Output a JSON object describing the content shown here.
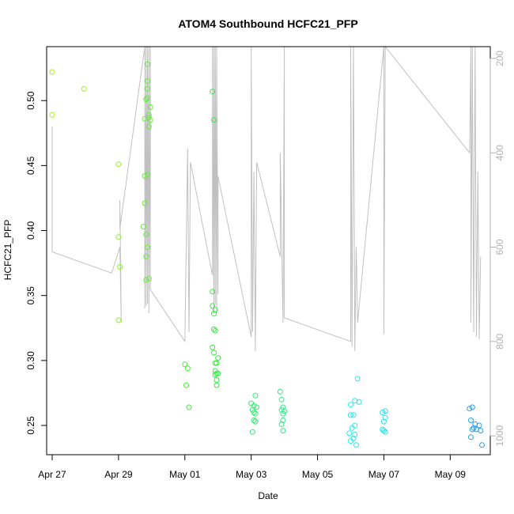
{
  "chart_data": {
    "type": "scatter",
    "title": "ATOM4 Southbound HCFC21_PFP",
    "xlabel": "Date",
    "ylabel": "HCFC21_PFP",
    "x_type": "date",
    "xlim": [
      "2017-04-26T20:00",
      "2017-05-10T05:00"
    ],
    "ylim": [
      0.2275,
      0.5415
    ],
    "x_ticks": [
      {
        "date": "2017-04-27",
        "label": "Apr 27"
      },
      {
        "date": "2017-04-29",
        "label": "Apr 29"
      },
      {
        "date": "2017-05-01",
        "label": "May 01"
      },
      {
        "date": "2017-05-03",
        "label": "May 03"
      },
      {
        "date": "2017-05-05",
        "label": "May 05"
      },
      {
        "date": "2017-05-07",
        "label": "May 07"
      },
      {
        "date": "2017-05-09",
        "label": "May 09"
      }
    ],
    "y_ticks": [
      "0.25",
      "0.30",
      "0.35",
      "0.40",
      "0.45",
      "0.50"
    ],
    "right_axis": {
      "description": "secondary scale for the grey trace",
      "range": [
        1040,
        175
      ],
      "ticks": [
        "200",
        "400",
        "600",
        "800",
        "1000"
      ],
      "color": "#b0b0b0"
    },
    "grid": false,
    "legend": "none",
    "point_style": "open circle, color shifts from green to blue over time",
    "points": [
      {
        "x": "2017-04-27T00:00",
        "y": 0.522,
        "color": "#a8f02a"
      },
      {
        "x": "2017-04-27T00:00",
        "y": 0.489,
        "color": "#a8f02a"
      },
      {
        "x": "2017-04-27T23:00",
        "y": 0.509,
        "color": "#a3f02c"
      },
      {
        "x": "2017-04-29T00:00",
        "y": 0.451,
        "color": "#8cef30"
      },
      {
        "x": "2017-04-29T00:00",
        "y": 0.395,
        "color": "#8cef30"
      },
      {
        "x": "2017-04-29T01:00",
        "y": 0.372,
        "color": "#8cef30"
      },
      {
        "x": "2017-04-29T00:00",
        "y": 0.331,
        "color": "#8cef30"
      },
      {
        "x": "2017-04-29T19:00",
        "y": 0.486,
        "color": "#66ee35"
      },
      {
        "x": "2017-04-29T19:00",
        "y": 0.442,
        "color": "#66ee35"
      },
      {
        "x": "2017-04-29T19:00",
        "y": 0.421,
        "color": "#66ee35"
      },
      {
        "x": "2017-04-29T18:00",
        "y": 0.403,
        "color": "#66ee35"
      },
      {
        "x": "2017-04-29T20:00",
        "y": 0.397,
        "color": "#66ee35"
      },
      {
        "x": "2017-04-29T20:00",
        "y": 0.38,
        "color": "#66ee35"
      },
      {
        "x": "2017-04-29T21:00",
        "y": 0.387,
        "color": "#66ee35"
      },
      {
        "x": "2017-04-29T20:00",
        "y": 0.362,
        "color": "#66ee35"
      },
      {
        "x": "2017-04-29T22:00",
        "y": 0.363,
        "color": "#66ee35"
      },
      {
        "x": "2017-04-29T21:00",
        "y": 0.528,
        "color": "#66ee35"
      },
      {
        "x": "2017-04-29T21:00",
        "y": 0.515,
        "color": "#66ee35"
      },
      {
        "x": "2017-04-29T21:00",
        "y": 0.509,
        "color": "#66ee35"
      },
      {
        "x": "2017-04-29T20:00",
        "y": 0.501,
        "color": "#66ee35"
      },
      {
        "x": "2017-04-29T21:00",
        "y": 0.502,
        "color": "#66ee35"
      },
      {
        "x": "2017-04-29T23:00",
        "y": 0.495,
        "color": "#66ee35"
      },
      {
        "x": "2017-04-29T22:00",
        "y": 0.489,
        "color": "#66ee35"
      },
      {
        "x": "2017-04-29T22:00",
        "y": 0.487,
        "color": "#66ee35"
      },
      {
        "x": "2017-04-29T23:00",
        "y": 0.485,
        "color": "#66ee35"
      },
      {
        "x": "2017-04-29T22:00",
        "y": 0.48,
        "color": "#66ee35"
      },
      {
        "x": "2017-04-29T21:00",
        "y": 0.443,
        "color": "#66ee35"
      },
      {
        "x": "2017-05-01T00:00",
        "y": 0.297,
        "color": "#48ed38"
      },
      {
        "x": "2017-05-01T02:00",
        "y": 0.294,
        "color": "#48ed38"
      },
      {
        "x": "2017-05-01T01:00",
        "y": 0.281,
        "color": "#48ed38"
      },
      {
        "x": "2017-05-01T03:00",
        "y": 0.264,
        "color": "#48ed38"
      },
      {
        "x": "2017-05-01T20:00",
        "y": 0.507,
        "color": "#35ec40"
      },
      {
        "x": "2017-05-01T21:00",
        "y": 0.485,
        "color": "#35ec40"
      },
      {
        "x": "2017-05-01T20:00",
        "y": 0.353,
        "color": "#35ec40"
      },
      {
        "x": "2017-05-01T20:00",
        "y": 0.342,
        "color": "#35ec40"
      },
      {
        "x": "2017-05-01T22:00",
        "y": 0.339,
        "color": "#35ec40"
      },
      {
        "x": "2017-05-01T21:00",
        "y": 0.336,
        "color": "#35ec40"
      },
      {
        "x": "2017-05-01T21:00",
        "y": 0.324,
        "color": "#35ec40"
      },
      {
        "x": "2017-05-01T22:00",
        "y": 0.323,
        "color": "#35ec40"
      },
      {
        "x": "2017-05-01T20:00",
        "y": 0.31,
        "color": "#35ec40"
      },
      {
        "x": "2017-05-01T21:00",
        "y": 0.306,
        "color": "#35ec40"
      },
      {
        "x": "2017-05-02T00:00",
        "y": 0.302,
        "color": "#35ec40"
      },
      {
        "x": "2017-05-01T22:00",
        "y": 0.298,
        "color": "#35ec40"
      },
      {
        "x": "2017-05-01T23:00",
        "y": 0.298,
        "color": "#35ec40"
      },
      {
        "x": "2017-05-01T22:00",
        "y": 0.292,
        "color": "#35ec40"
      },
      {
        "x": "2017-05-01T22:00",
        "y": 0.289,
        "color": "#35ec40"
      },
      {
        "x": "2017-05-01T23:00",
        "y": 0.29,
        "color": "#35ec40"
      },
      {
        "x": "2017-05-02T00:00",
        "y": 0.29,
        "color": "#35ec40"
      },
      {
        "x": "2017-05-01T23:00",
        "y": 0.285,
        "color": "#35ec40"
      },
      {
        "x": "2017-05-01T23:00",
        "y": 0.281,
        "color": "#35ec40"
      },
      {
        "x": "2017-05-03T00:00",
        "y": 0.267,
        "color": "#30eb6e"
      },
      {
        "x": "2017-05-03T03:00",
        "y": 0.273,
        "color": "#30eb6e"
      },
      {
        "x": "2017-05-03T02:00",
        "y": 0.265,
        "color": "#30eb6e"
      },
      {
        "x": "2017-05-03T04:00",
        "y": 0.264,
        "color": "#30eb6e"
      },
      {
        "x": "2017-05-03T01:00",
        "y": 0.262,
        "color": "#30eb6e"
      },
      {
        "x": "2017-05-03T02:00",
        "y": 0.26,
        "color": "#30eb6e"
      },
      {
        "x": "2017-05-03T03:00",
        "y": 0.259,
        "color": "#30eb6e"
      },
      {
        "x": "2017-05-03T02:00",
        "y": 0.254,
        "color": "#30eb6e"
      },
      {
        "x": "2017-05-03T03:00",
        "y": 0.253,
        "color": "#30eb6e"
      },
      {
        "x": "2017-05-03T01:00",
        "y": 0.245,
        "color": "#30eb6e"
      },
      {
        "x": "2017-05-03T21:00",
        "y": 0.276,
        "color": "#2eeb82"
      },
      {
        "x": "2017-05-03T22:00",
        "y": 0.27,
        "color": "#2eeb82"
      },
      {
        "x": "2017-05-03T23:00",
        "y": 0.264,
        "color": "#2eeb82"
      },
      {
        "x": "2017-05-03T22:00",
        "y": 0.262,
        "color": "#2eeb82"
      },
      {
        "x": "2017-05-04T00:00",
        "y": 0.261,
        "color": "#2eeb82"
      },
      {
        "x": "2017-05-03T23:00",
        "y": 0.259,
        "color": "#2eeb82"
      },
      {
        "x": "2017-05-03T23:00",
        "y": 0.254,
        "color": "#2eeb82"
      },
      {
        "x": "2017-05-03T22:00",
        "y": 0.251,
        "color": "#2eeb82"
      },
      {
        "x": "2017-05-03T23:00",
        "y": 0.246,
        "color": "#2eeb82"
      },
      {
        "x": "2017-05-06T05:00",
        "y": 0.286,
        "color": "#2ce8ea"
      },
      {
        "x": "2017-05-06T03:00",
        "y": 0.269,
        "color": "#2ce8ea"
      },
      {
        "x": "2017-05-06T06:00",
        "y": 0.268,
        "color": "#2ce8ea"
      },
      {
        "x": "2017-05-06T00:00",
        "y": 0.266,
        "color": "#2ce8ea"
      },
      {
        "x": "2017-05-06T02:00",
        "y": 0.258,
        "color": "#2ce8ea"
      },
      {
        "x": "2017-05-06T00:00",
        "y": 0.258,
        "color": "#2ce8ea"
      },
      {
        "x": "2017-05-06T03:00",
        "y": 0.25,
        "color": "#2ce8ea"
      },
      {
        "x": "2017-05-06T01:00",
        "y": 0.248,
        "color": "#2ce8ea"
      },
      {
        "x": "2017-05-05T23:00",
        "y": 0.244,
        "color": "#2ce8ea"
      },
      {
        "x": "2017-05-06T03:00",
        "y": 0.243,
        "color": "#2ce8ea"
      },
      {
        "x": "2017-05-06T00:00",
        "y": 0.238,
        "color": "#2ce8ea"
      },
      {
        "x": "2017-05-06T02:00",
        "y": 0.24,
        "color": "#2ce8ea"
      },
      {
        "x": "2017-05-06T04:00",
        "y": 0.235,
        "color": "#2ce8ea"
      },
      {
        "x": "2017-05-06T23:00",
        "y": 0.26,
        "color": "#2cdfe9"
      },
      {
        "x": "2017-05-07T01:00",
        "y": 0.261,
        "color": "#2cdfe9"
      },
      {
        "x": "2017-05-07T01:00",
        "y": 0.256,
        "color": "#2cdfe9"
      },
      {
        "x": "2017-05-07T00:00",
        "y": 0.253,
        "color": "#2cdfe9"
      },
      {
        "x": "2017-05-06T23:00",
        "y": 0.247,
        "color": "#2cdfe9"
      },
      {
        "x": "2017-05-07T00:00",
        "y": 0.246,
        "color": "#2cdfe9"
      },
      {
        "x": "2017-05-07T01:00",
        "y": 0.245,
        "color": "#2cdfe9"
      },
      {
        "x": "2017-05-09T14:00",
        "y": 0.263,
        "color": "#2a9be6"
      },
      {
        "x": "2017-05-09T16:00",
        "y": 0.264,
        "color": "#2a9be6"
      },
      {
        "x": "2017-05-09T15:00",
        "y": 0.254,
        "color": "#2a9be6"
      },
      {
        "x": "2017-05-09T18:00",
        "y": 0.251,
        "color": "#2a9be6"
      },
      {
        "x": "2017-05-09T21:00",
        "y": 0.25,
        "color": "#2a9be6"
      },
      {
        "x": "2017-05-09T17:00",
        "y": 0.248,
        "color": "#2a9be6"
      },
      {
        "x": "2017-05-09T19:00",
        "y": 0.247,
        "color": "#2a9be6"
      },
      {
        "x": "2017-05-09T16:00",
        "y": 0.247,
        "color": "#2a9be6"
      },
      {
        "x": "2017-05-09T22:00",
        "y": 0.246,
        "color": "#2a9be6"
      },
      {
        "x": "2017-05-09T15:00",
        "y": 0.241,
        "color": "#2a9be6"
      },
      {
        "x": "2017-05-09T23:00",
        "y": 0.235,
        "color": "#2a9be6"
      }
    ],
    "trace": {
      "description": "grey line plotted against the right axis",
      "color": "#c0c0c0",
      "points": [
        [
          "2017-04-27T00:00",
          420
        ],
        [
          "2017-04-27T00:00",
          345
        ],
        [
          "2017-04-27T00:00",
          610
        ],
        [
          "2017-04-28T19:00",
          655
        ],
        [
          "2017-04-29T01:00",
          600
        ],
        [
          "2017-04-29T02:00",
          760
        ],
        [
          "2017-04-29T01:00",
          500
        ],
        [
          "2017-04-29T01:00",
          560
        ],
        [
          "2017-04-29T19:00",
          0
        ],
        [
          "2017-04-29T19:00",
          730
        ],
        [
          "2017-04-29T20:00",
          0
        ],
        [
          "2017-04-29T20:00",
          725
        ],
        [
          "2017-04-29T21:00",
          0
        ],
        [
          "2017-04-29T21:00",
          720
        ],
        [
          "2017-04-29T22:00",
          0
        ],
        [
          "2017-04-29T22:00",
          740
        ],
        [
          "2017-04-29T23:00",
          0
        ],
        [
          "2017-04-29T23:00",
          690
        ],
        [
          "2017-05-01T00:00",
          800
        ],
        [
          "2017-05-01T02:00",
          390
        ],
        [
          "2017-05-01T03:00",
          780
        ],
        [
          "2017-05-01T04:00",
          420
        ],
        [
          "2017-05-01T20:00",
          660
        ],
        [
          "2017-05-01T20:00",
          0
        ],
        [
          "2017-05-01T21:00",
          740
        ],
        [
          "2017-05-01T21:00",
          0
        ],
        [
          "2017-05-01T22:00",
          720
        ],
        [
          "2017-05-01T22:00",
          0
        ],
        [
          "2017-05-01T23:00",
          740
        ],
        [
          "2017-05-01T23:00",
          0
        ],
        [
          "2017-05-02T00:00",
          700
        ],
        [
          "2017-05-02T00:00",
          450
        ],
        [
          "2017-05-03T00:00",
          790
        ],
        [
          "2017-05-03T00:00",
          0
        ],
        [
          "2017-05-03T01:00",
          780
        ],
        [
          "2017-05-03T02:00",
          440
        ],
        [
          "2017-05-03T03:00",
          820
        ],
        [
          "2017-05-03T04:00",
          420
        ],
        [
          "2017-05-03T21:00",
          620
        ],
        [
          "2017-05-03T21:00",
          400
        ],
        [
          "2017-05-03T23:00",
          760
        ],
        [
          "2017-05-04T00:00",
          0
        ],
        [
          "2017-05-04T00:00",
          750
        ],
        [
          "2017-05-06T00:00",
          800
        ],
        [
          "2017-05-06T00:00",
          0
        ],
        [
          "2017-05-06T01:00",
          810
        ],
        [
          "2017-05-06T02:00",
          0
        ],
        [
          "2017-05-06T03:00",
          820
        ],
        [
          "2017-05-06T04:00",
          600
        ],
        [
          "2017-05-06T05:00",
          760
        ],
        [
          "2017-05-07T00:00",
          0
        ],
        [
          "2017-05-07T00:00",
          785
        ],
        [
          "2017-05-07T01:00",
          0
        ],
        [
          "2017-05-09T14:00",
          400
        ],
        [
          "2017-05-09T15:00",
          0
        ],
        [
          "2017-05-09T15:00",
          760
        ],
        [
          "2017-05-09T16:00",
          0
        ],
        [
          "2017-05-09T17:00",
          780
        ],
        [
          "2017-05-09T18:00",
          0
        ],
        [
          "2017-05-09T19:00",
          790
        ],
        [
          "2017-05-09T20:00",
          440
        ],
        [
          "2017-05-09T21:00",
          795
        ],
        [
          "2017-05-09T22:00",
          620
        ]
      ]
    }
  }
}
